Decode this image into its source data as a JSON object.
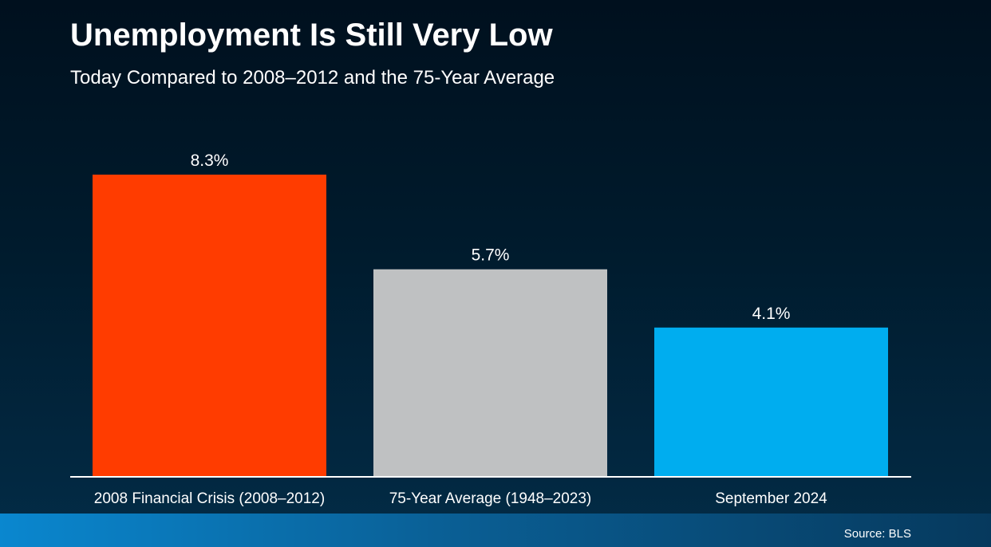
{
  "slide": {
    "title": "Unemployment Is Still Very Low",
    "subtitle": "Today Compared to 2008–2012 and the 75-Year Average",
    "source": "Source: BLS"
  },
  "chart_data": {
    "type": "bar",
    "categories": [
      "2008 Financial Crisis (2008–2012)",
      "75-Year Average (1948–2023)",
      "September 2024"
    ],
    "values": [
      8.3,
      5.7,
      4.1
    ],
    "value_labels": [
      "8.3%",
      "5.7%",
      "4.1%"
    ],
    "colors": [
      "#ff3c00",
      "#bfc1c2",
      "#00adef"
    ],
    "ylim": [
      0,
      8.3
    ],
    "grid": false,
    "legend": "none",
    "axis_color": "#ffffff",
    "label_color": "#ffffff"
  }
}
